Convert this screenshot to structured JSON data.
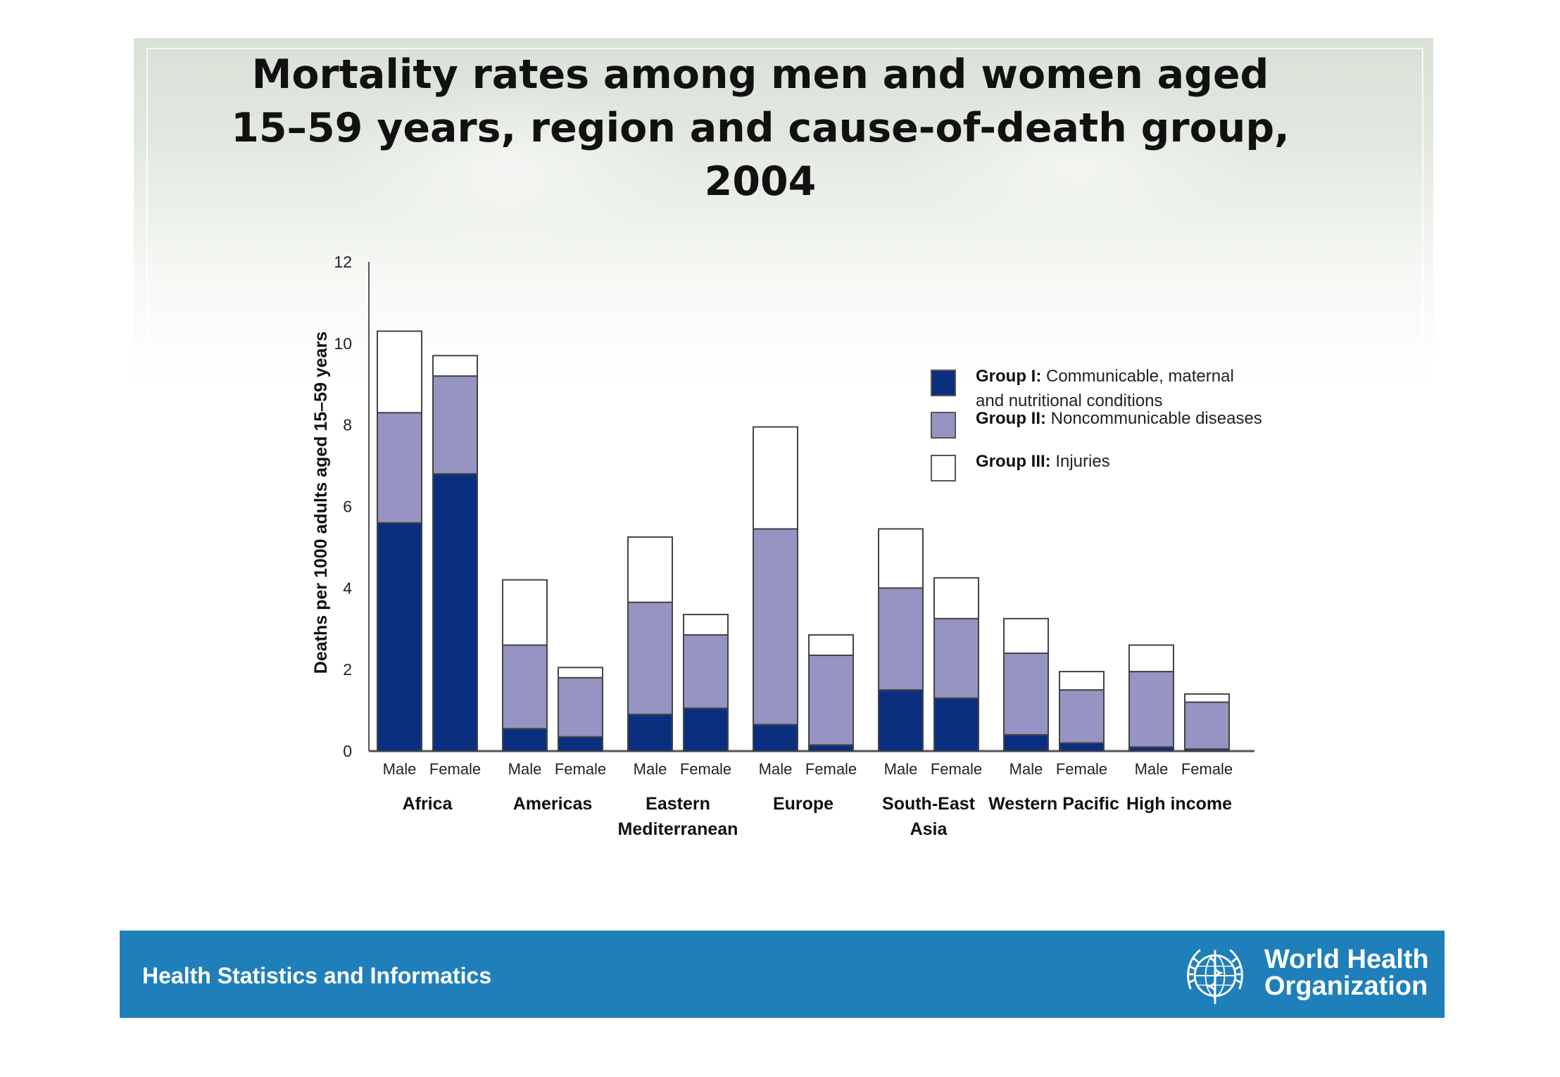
{
  "slide": {
    "title_lines": [
      "Mortality rates among men and women aged",
      "15–59 years, region and cause-of-death group,",
      "2004"
    ]
  },
  "footer": {
    "left_text": "Health Statistics and Informatics",
    "org_name_lines": [
      "World Health",
      "Organization"
    ],
    "logo_icon": "who-emblem-icon"
  },
  "chart_data": {
    "type": "bar",
    "stacked": true,
    "title": "Mortality rates among men and women aged 15–59 years, region and cause-of-death group, 2004",
    "ylabel": "Deaths per 1000 adults aged 15–59 years",
    "ylim": [
      0,
      12
    ],
    "yticks": [
      0,
      2,
      4,
      6,
      8,
      10,
      12
    ],
    "grid": false,
    "legend_position": "top-right",
    "regions": [
      {
        "name_lines": [
          "Africa"
        ],
        "bars": [
          {
            "sex": "Male",
            "values": [
              5.6,
              2.7,
              2.0
            ]
          },
          {
            "sex": "Female",
            "values": [
              6.8,
              2.4,
              0.5
            ]
          }
        ]
      },
      {
        "name_lines": [
          "Americas"
        ],
        "bars": [
          {
            "sex": "Male",
            "values": [
              0.55,
              2.05,
              1.6
            ]
          },
          {
            "sex": "Female",
            "values": [
              0.35,
              1.45,
              0.25
            ]
          }
        ]
      },
      {
        "name_lines": [
          "Eastern",
          "Mediterranean"
        ],
        "bars": [
          {
            "sex": "Male",
            "values": [
              0.9,
              2.75,
              1.6
            ]
          },
          {
            "sex": "Female",
            "values": [
              1.05,
              1.8,
              0.5
            ]
          }
        ]
      },
      {
        "name_lines": [
          "Europe"
        ],
        "bars": [
          {
            "sex": "Male",
            "values": [
              0.65,
              4.8,
              2.5
            ]
          },
          {
            "sex": "Female",
            "values": [
              0.15,
              2.2,
              0.5
            ]
          }
        ]
      },
      {
        "name_lines": [
          "South-East",
          "Asia"
        ],
        "bars": [
          {
            "sex": "Male",
            "values": [
              1.5,
              2.5,
              1.45
            ]
          },
          {
            "sex": "Female",
            "values": [
              1.3,
              1.95,
              1.0
            ]
          }
        ]
      },
      {
        "name_lines": [
          "Western Pacific"
        ],
        "bars": [
          {
            "sex": "Male",
            "values": [
              0.4,
              2.0,
              0.85
            ]
          },
          {
            "sex": "Female",
            "values": [
              0.2,
              1.3,
              0.45
            ]
          }
        ]
      },
      {
        "name_lines": [
          "High income"
        ],
        "bars": [
          {
            "sex": "Male",
            "values": [
              0.1,
              1.85,
              0.65
            ]
          },
          {
            "sex": "Female",
            "values": [
              0.05,
              1.15,
              0.2
            ]
          }
        ]
      }
    ],
    "series": [
      {
        "key": "group1",
        "bold": "Group I:",
        "rest_lines": [
          " Communicable, maternal",
          "and nutritional conditions"
        ],
        "color": "#0b2f7f"
      },
      {
        "key": "group2",
        "bold": "Group II:",
        "rest_lines": [
          " Noncommunicable diseases"
        ],
        "color": "#9694c3"
      },
      {
        "key": "group3",
        "bold": "Group III:",
        "rest_lines": [
          " Injuries"
        ],
        "color": "#ffffff"
      }
    ]
  }
}
